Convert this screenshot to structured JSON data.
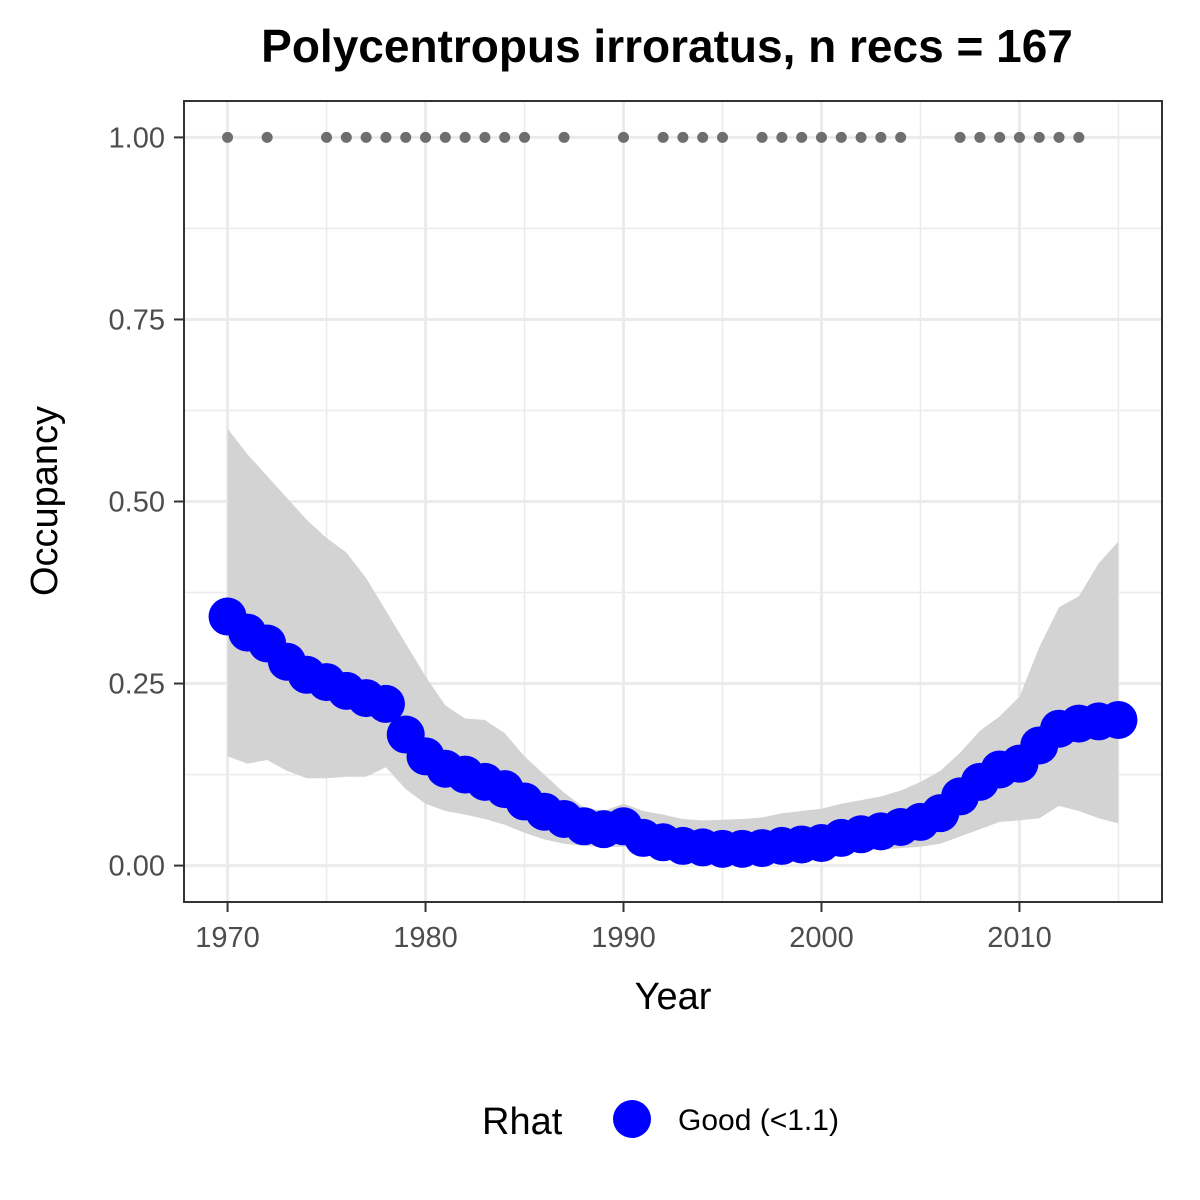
{
  "chart_data": {
    "type": "line",
    "title": "Polycentropus irroratus, n recs = 167",
    "xlabel": "Year",
    "ylabel": "Occupancy",
    "xlim": [
      1967.8,
      2017.2
    ],
    "ylim": [
      -0.05,
      1.05
    ],
    "x_ticks": [
      1970,
      1980,
      1990,
      2000,
      2010
    ],
    "x_minor_ticks": [
      1975,
      1985,
      1995,
      2005,
      2015
    ],
    "y_ticks": [
      0.0,
      0.25,
      0.5,
      0.75,
      1.0
    ],
    "y_tick_labels": [
      "0.00",
      "0.25",
      "0.50",
      "0.75",
      "1.00"
    ],
    "y_minor_ticks": [
      0.125,
      0.375,
      0.625,
      0.875
    ],
    "grid": true,
    "colors": {
      "occupancy_points": "#0000ff",
      "ribbon": "#d3d3d3",
      "record_points": "#6e6e6e",
      "grid": "#ebebeb",
      "panel_border": "#333333"
    },
    "occupancy": {
      "x": [
        1970,
        1971,
        1972,
        1973,
        1974,
        1975,
        1976,
        1977,
        1978,
        1979,
        1980,
        1981,
        1982,
        1983,
        1984,
        1985,
        1986,
        1987,
        1988,
        1989,
        1990,
        1991,
        1992,
        1993,
        1994,
        1995,
        1996,
        1997,
        1998,
        1999,
        2000,
        2001,
        2002,
        2003,
        2004,
        2005,
        2006,
        2007,
        2008,
        2009,
        2010,
        2011,
        2012,
        2013,
        2014,
        2015
      ],
      "mean": [
        0.342,
        0.32,
        0.305,
        0.28,
        0.262,
        0.252,
        0.24,
        0.23,
        0.222,
        0.18,
        0.15,
        0.133,
        0.125,
        0.115,
        0.105,
        0.088,
        0.074,
        0.064,
        0.054,
        0.05,
        0.054,
        0.038,
        0.032,
        0.027,
        0.025,
        0.023,
        0.023,
        0.024,
        0.027,
        0.029,
        0.031,
        0.038,
        0.043,
        0.047,
        0.053,
        0.06,
        0.072,
        0.095,
        0.115,
        0.132,
        0.14,
        0.165,
        0.188,
        0.195,
        0.198,
        0.2
      ],
      "lower": [
        0.15,
        0.14,
        0.145,
        0.13,
        0.12,
        0.12,
        0.122,
        0.122,
        0.135,
        0.105,
        0.085,
        0.075,
        0.07,
        0.064,
        0.056,
        0.045,
        0.036,
        0.03,
        0.027,
        0.026,
        0.026,
        0.023,
        0.02,
        0.017,
        0.016,
        0.015,
        0.015,
        0.016,
        0.016,
        0.018,
        0.018,
        0.02,
        0.021,
        0.022,
        0.024,
        0.026,
        0.03,
        0.04,
        0.05,
        0.06,
        0.062,
        0.065,
        0.082,
        0.075,
        0.065,
        0.058
      ],
      "upper": [
        0.6,
        0.565,
        0.535,
        0.505,
        0.475,
        0.45,
        0.43,
        0.395,
        0.35,
        0.305,
        0.26,
        0.22,
        0.202,
        0.2,
        0.182,
        0.15,
        0.125,
        0.1,
        0.08,
        0.075,
        0.085,
        0.075,
        0.07,
        0.064,
        0.062,
        0.063,
        0.064,
        0.066,
        0.072,
        0.075,
        0.078,
        0.085,
        0.09,
        0.095,
        0.103,
        0.115,
        0.13,
        0.155,
        0.185,
        0.205,
        0.232,
        0.3,
        0.355,
        0.37,
        0.415,
        0.445
      ]
    },
    "records": {
      "x": [
        1970,
        1972,
        1975,
        1976,
        1977,
        1978,
        1979,
        1980,
        1981,
        1982,
        1983,
        1984,
        1985,
        1987,
        1990,
        1992,
        1993,
        1994,
        1995,
        1997,
        1998,
        1999,
        2000,
        2001,
        2002,
        2003,
        2004,
        2007,
        2008,
        2009,
        2010,
        2011,
        2012,
        2013
      ],
      "y": 1.0
    },
    "legend": {
      "position": "bottom",
      "title": "Rhat",
      "entries": [
        {
          "label": "Good (<1.1)",
          "color": "#0000ff"
        }
      ]
    }
  }
}
